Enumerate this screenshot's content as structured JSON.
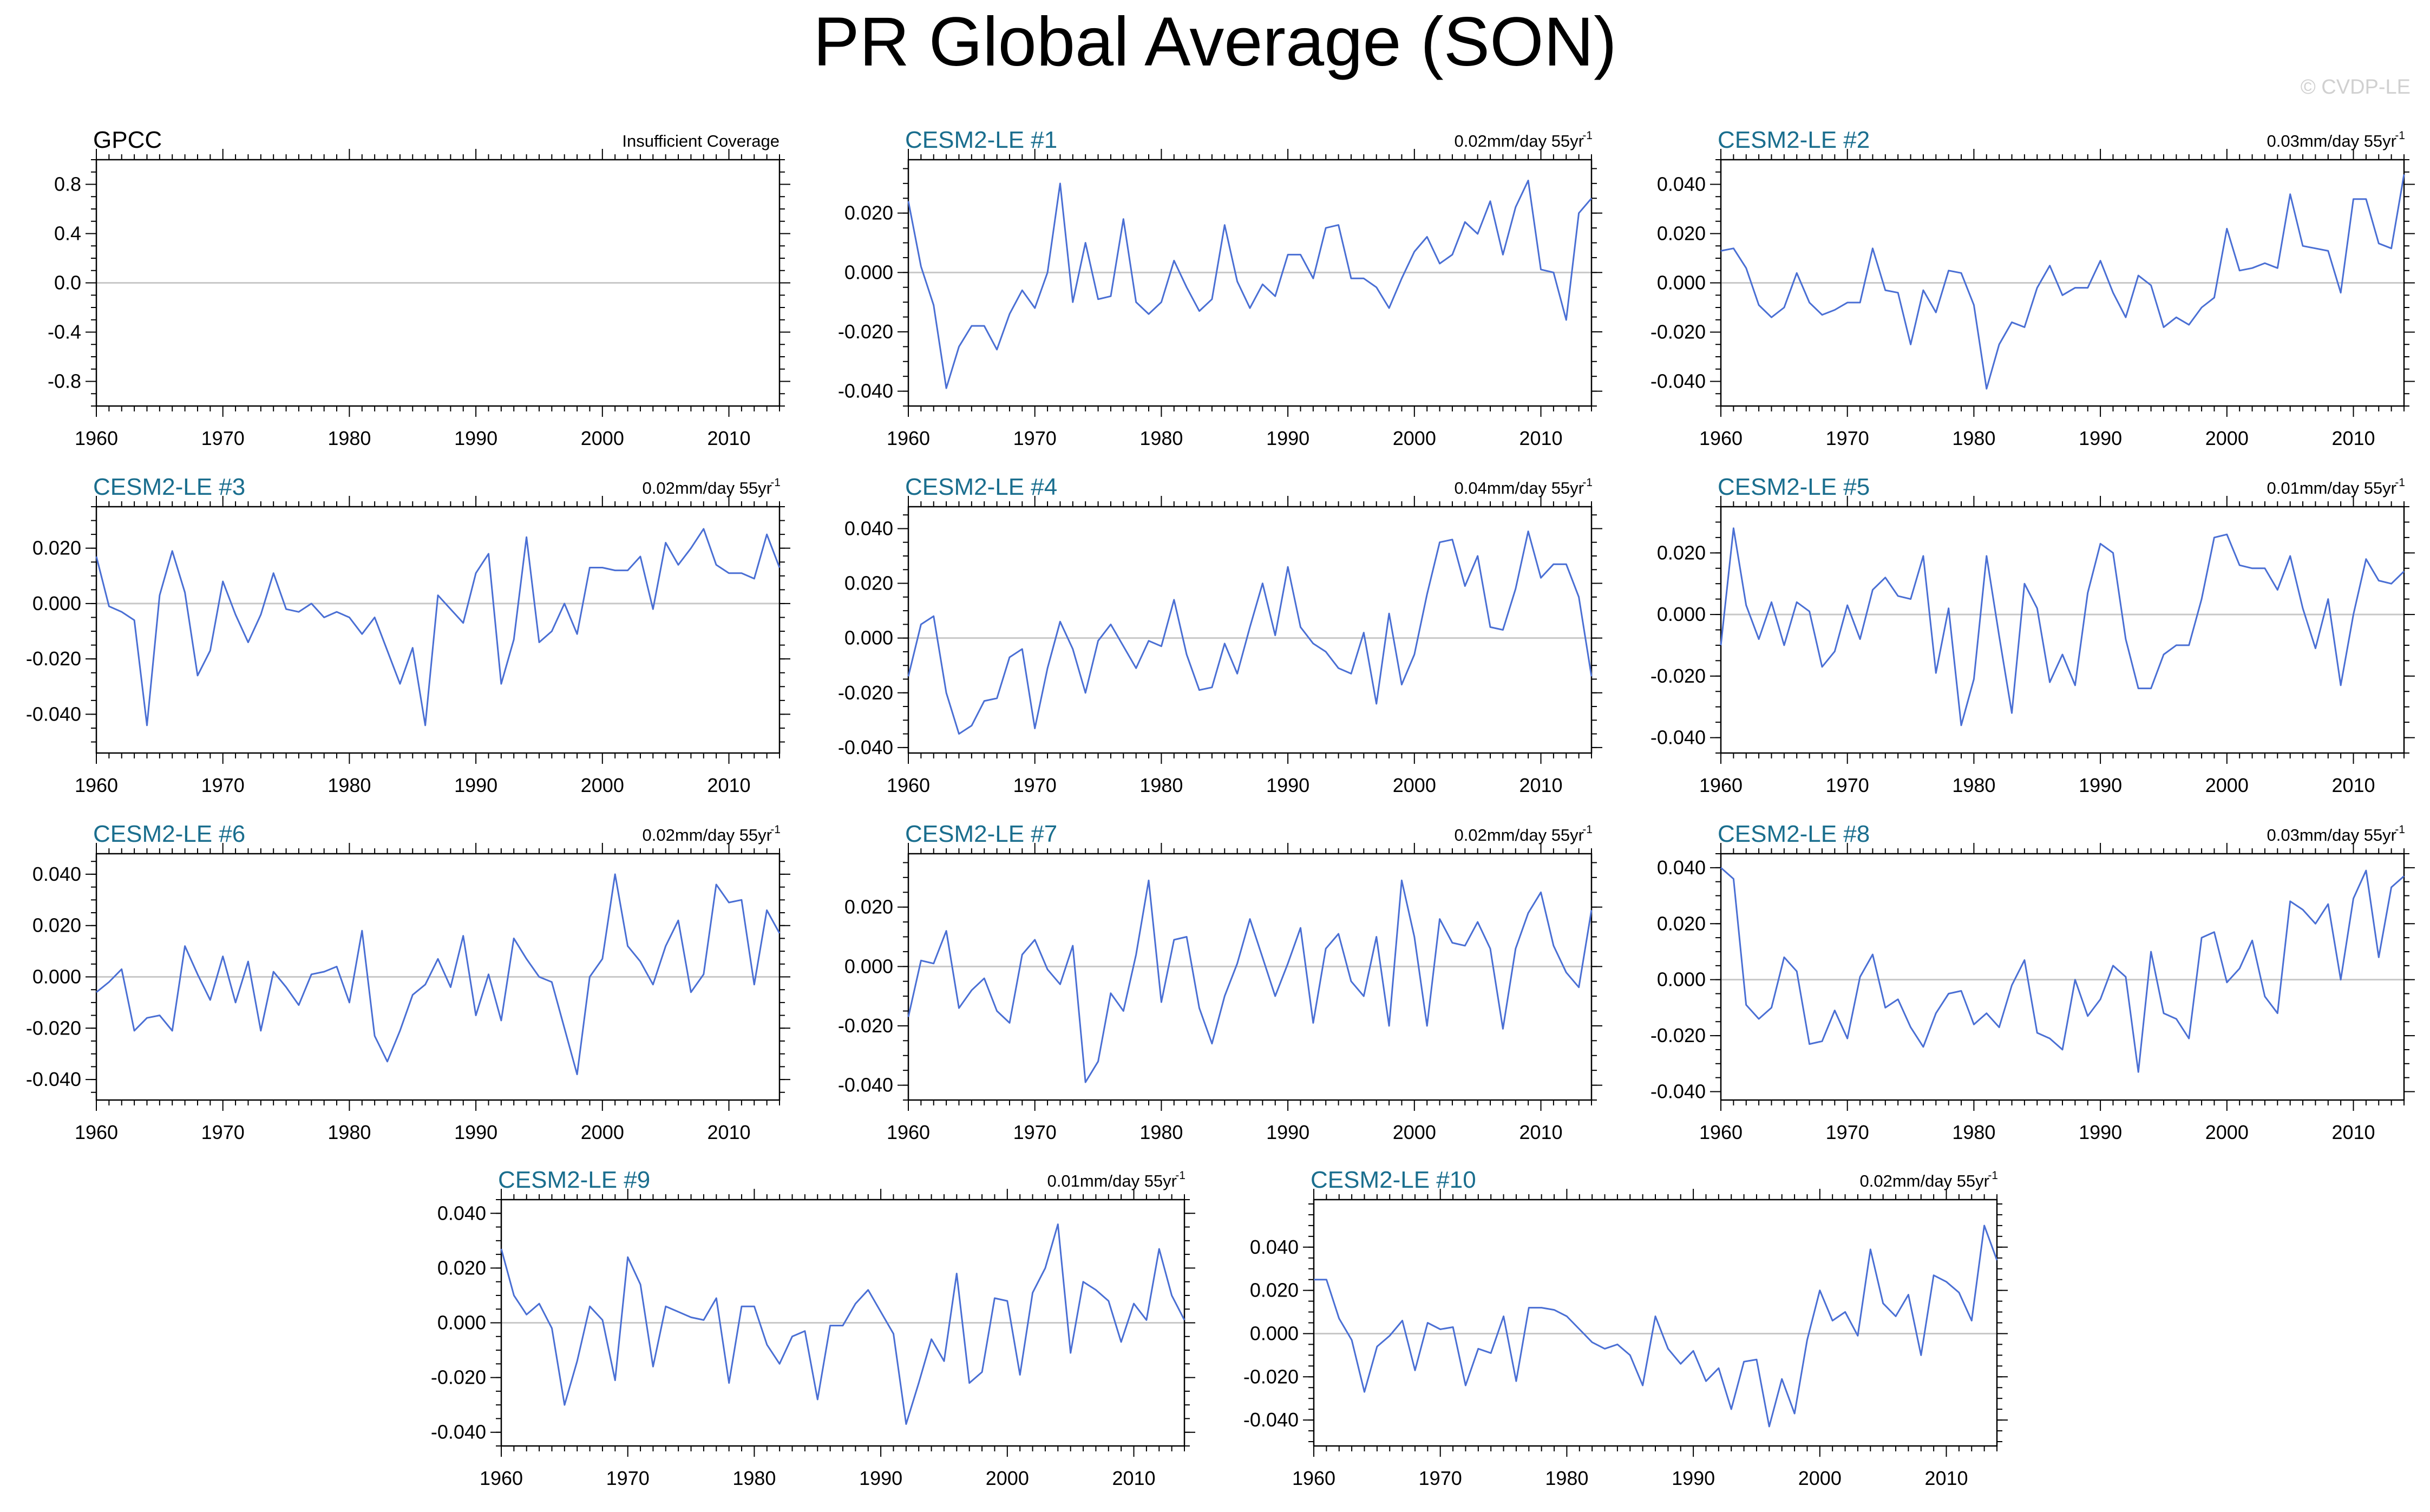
{
  "title": "PR Global Average (SON)",
  "copyright": "© CVDP-LE",
  "colors": {
    "line": "#4a6fd4",
    "zero": "#c8c8c8",
    "title_obs": "#000000",
    "title_model": "#1a6e8e"
  },
  "years_start": 1960,
  "years_end": 2014,
  "chart_data": [
    {
      "id": "gpcc",
      "type": "line",
      "title": "GPCC",
      "note": "Insufficient Coverage",
      "trend_unit": "",
      "trend_sup": "",
      "ylim": [
        -1.0,
        1.0
      ],
      "yticks": [
        -0.8,
        -0.4,
        0.0,
        0.4,
        0.8
      ],
      "ytick_labels": [
        "-0.8",
        "-0.4",
        "0.0",
        "0.4",
        "0.8"
      ],
      "xticks": [
        1960,
        1970,
        1980,
        1990,
        2000,
        2010
      ],
      "values": []
    },
    {
      "id": "le1",
      "type": "line",
      "title": "CESM2-LE #1",
      "note": "0.02mm/day 55yr",
      "trend_sup": "-1",
      "ylim": [
        -0.045,
        0.038
      ],
      "yticks": [
        -0.04,
        -0.02,
        0.0,
        0.02
      ],
      "ytick_labels": [
        "-0.040",
        "-0.020",
        "0.000",
        "0.020"
      ],
      "xticks": [
        1960,
        1970,
        1980,
        1990,
        2000,
        2010
      ],
      "values": [
        0.024,
        0.002,
        -0.011,
        -0.039,
        -0.025,
        -0.018,
        -0.018,
        -0.026,
        -0.014,
        -0.006,
        -0.012,
        0.0,
        0.03,
        -0.01,
        0.01,
        -0.009,
        -0.008,
        0.018,
        -0.01,
        -0.014,
        -0.01,
        0.004,
        -0.005,
        -0.013,
        -0.009,
        0.016,
        -0.003,
        -0.012,
        -0.004,
        -0.008,
        0.006,
        0.006,
        -0.002,
        0.015,
        0.016,
        -0.002,
        -0.002,
        -0.005,
        -0.012,
        -0.002,
        0.007,
        0.012,
        0.003,
        0.006,
        0.017,
        0.013,
        0.024,
        0.006,
        0.022,
        0.031,
        0.001,
        0.0,
        -0.016,
        0.02,
        0.025
      ]
    },
    {
      "id": "le2",
      "type": "line",
      "title": "CESM2-LE #2",
      "note": "0.03mm/day 55yr",
      "trend_sup": "-1",
      "ylim": [
        -0.05,
        0.05
      ],
      "yticks": [
        -0.04,
        -0.02,
        0.0,
        0.02,
        0.04
      ],
      "ytick_labels": [
        "-0.040",
        "-0.020",
        "0.000",
        "0.020",
        "0.040"
      ],
      "xticks": [
        1960,
        1970,
        1980,
        1990,
        2000,
        2010
      ],
      "values": [
        0.013,
        0.014,
        0.006,
        -0.009,
        -0.014,
        -0.01,
        0.004,
        -0.008,
        -0.013,
        -0.011,
        -0.008,
        -0.008,
        0.014,
        -0.003,
        -0.004,
        -0.025,
        -0.003,
        -0.012,
        0.005,
        0.004,
        -0.009,
        -0.043,
        -0.025,
        -0.016,
        -0.018,
        -0.002,
        0.007,
        -0.005,
        -0.002,
        -0.002,
        0.009,
        -0.004,
        -0.014,
        0.003,
        -0.001,
        -0.018,
        -0.014,
        -0.017,
        -0.01,
        -0.006,
        0.022,
        0.005,
        0.006,
        0.008,
        0.006,
        0.036,
        0.015,
        0.014,
        0.013,
        -0.004,
        0.034,
        0.034,
        0.016,
        0.014,
        0.044
      ]
    },
    {
      "id": "le3",
      "type": "line",
      "title": "CESM2-LE #3",
      "note": "0.02mm/day 55yr",
      "trend_sup": "-1",
      "ylim": [
        -0.054,
        0.035
      ],
      "yticks": [
        -0.04,
        -0.02,
        0.0,
        0.02
      ],
      "ytick_labels": [
        "-0.040",
        "-0.020",
        "0.000",
        "0.020"
      ],
      "xticks": [
        1960,
        1970,
        1980,
        1990,
        2000,
        2010
      ],
      "values": [
        0.017,
        -0.001,
        -0.003,
        -0.006,
        -0.044,
        0.003,
        0.019,
        0.004,
        -0.026,
        -0.017,
        0.008,
        -0.004,
        -0.014,
        -0.004,
        0.011,
        -0.002,
        -0.003,
        0.0,
        -0.005,
        -0.003,
        -0.005,
        -0.011,
        -0.005,
        -0.017,
        -0.029,
        -0.016,
        -0.044,
        0.003,
        -0.002,
        -0.007,
        0.011,
        0.018,
        -0.029,
        -0.013,
        0.024,
        -0.014,
        -0.01,
        0.0,
        -0.011,
        0.013,
        0.013,
        0.012,
        0.012,
        0.017,
        -0.002,
        0.022,
        0.014,
        0.02,
        0.027,
        0.014,
        0.011,
        0.011,
        0.009,
        0.025,
        0.013
      ]
    },
    {
      "id": "le4",
      "type": "line",
      "title": "CESM2-LE #4",
      "note": "0.04mm/day 55yr",
      "trend_sup": "-1",
      "ylim": [
        -0.042,
        0.048
      ],
      "yticks": [
        -0.04,
        -0.02,
        0.0,
        0.02,
        0.04
      ],
      "ytick_labels": [
        "-0.040",
        "-0.020",
        "0.000",
        "0.020",
        "0.040"
      ],
      "xticks": [
        1960,
        1970,
        1980,
        1990,
        2000,
        2010
      ],
      "values": [
        -0.014,
        0.005,
        0.008,
        -0.02,
        -0.035,
        -0.032,
        -0.023,
        -0.022,
        -0.007,
        -0.004,
        -0.033,
        -0.011,
        0.006,
        -0.004,
        -0.02,
        -0.001,
        0.005,
        -0.003,
        -0.011,
        -0.001,
        -0.003,
        0.014,
        -0.006,
        -0.019,
        -0.018,
        -0.002,
        -0.013,
        0.004,
        0.02,
        0.001,
        0.026,
        0.004,
        -0.002,
        -0.005,
        -0.011,
        -0.013,
        0.002,
        -0.024,
        0.009,
        -0.017,
        -0.006,
        0.016,
        0.035,
        0.036,
        0.019,
        0.03,
        0.004,
        0.003,
        0.018,
        0.039,
        0.022,
        0.027,
        0.027,
        0.015,
        -0.014
      ]
    },
    {
      "id": "le5",
      "type": "line",
      "title": "CESM2-LE #5",
      "note": "0.01mm/day 55yr",
      "trend_sup": "-1",
      "ylim": [
        -0.045,
        0.035
      ],
      "yticks": [
        -0.04,
        -0.02,
        0.0,
        0.02
      ],
      "ytick_labels": [
        "-0.040",
        "-0.020",
        "0.000",
        "0.020"
      ],
      "xticks": [
        1960,
        1970,
        1980,
        1990,
        2000,
        2010
      ],
      "values": [
        -0.01,
        0.028,
        0.003,
        -0.008,
        0.004,
        -0.01,
        0.004,
        0.001,
        -0.017,
        -0.012,
        0.003,
        -0.008,
        0.008,
        0.012,
        0.006,
        0.005,
        0.019,
        -0.019,
        0.002,
        -0.036,
        -0.021,
        0.019,
        -0.007,
        -0.032,
        0.01,
        0.002,
        -0.022,
        -0.013,
        -0.023,
        0.007,
        0.023,
        0.02,
        -0.008,
        -0.024,
        -0.024,
        -0.013,
        -0.01,
        -0.01,
        0.005,
        0.025,
        0.026,
        0.016,
        0.015,
        0.015,
        0.008,
        0.019,
        0.002,
        -0.011,
        0.005,
        -0.023,
        0.0,
        0.018,
        0.011,
        0.01,
        0.014
      ]
    },
    {
      "id": "le6",
      "type": "line",
      "title": "CESM2-LE #6",
      "note": "0.02mm/day 55yr",
      "trend_sup": "-1",
      "ylim": [
        -0.048,
        0.048
      ],
      "yticks": [
        -0.04,
        -0.02,
        0.0,
        0.02,
        0.04
      ],
      "ytick_labels": [
        "-0.040",
        "-0.020",
        "0.000",
        "0.020",
        "0.040"
      ],
      "xticks": [
        1960,
        1970,
        1980,
        1990,
        2000,
        2010
      ],
      "values": [
        -0.006,
        -0.002,
        0.003,
        -0.021,
        -0.016,
        -0.015,
        -0.021,
        0.012,
        0.001,
        -0.009,
        0.008,
        -0.01,
        0.006,
        -0.021,
        0.002,
        -0.004,
        -0.011,
        0.001,
        0.002,
        0.004,
        -0.01,
        0.018,
        -0.023,
        -0.033,
        -0.021,
        -0.007,
        -0.003,
        0.007,
        -0.004,
        0.016,
        -0.015,
        0.001,
        -0.017,
        0.015,
        0.007,
        0.0,
        -0.002,
        -0.02,
        -0.038,
        0.0,
        0.007,
        0.04,
        0.012,
        0.006,
        -0.003,
        0.012,
        0.022,
        -0.006,
        0.001,
        0.036,
        0.029,
        0.03,
        -0.003,
        0.026,
        0.017
      ]
    },
    {
      "id": "le7",
      "type": "line",
      "title": "CESM2-LE #7",
      "note": "0.02mm/day 55yr",
      "trend_sup": "-1",
      "ylim": [
        -0.045,
        0.038
      ],
      "yticks": [
        -0.04,
        -0.02,
        0.0,
        0.02
      ],
      "ytick_labels": [
        "-0.040",
        "-0.020",
        "0.000",
        "0.020"
      ],
      "xticks": [
        1960,
        1970,
        1980,
        1990,
        2000,
        2010
      ],
      "values": [
        -0.017,
        0.002,
        0.001,
        0.012,
        -0.014,
        -0.008,
        -0.004,
        -0.015,
        -0.019,
        0.004,
        0.009,
        -0.001,
        -0.006,
        0.007,
        -0.039,
        -0.032,
        -0.009,
        -0.015,
        0.004,
        0.029,
        -0.012,
        0.009,
        0.01,
        -0.014,
        -0.026,
        -0.01,
        0.001,
        0.016,
        0.003,
        -0.01,
        0.001,
        0.013,
        -0.019,
        0.006,
        0.011,
        -0.005,
        -0.01,
        0.01,
        -0.02,
        0.029,
        0.01,
        -0.02,
        0.016,
        0.008,
        0.007,
        0.015,
        0.006,
        -0.021,
        0.006,
        0.018,
        0.025,
        0.007,
        -0.002,
        -0.007,
        0.019
      ]
    },
    {
      "id": "le8",
      "type": "line",
      "title": "CESM2-LE #8",
      "note": "0.03mm/day 55yr",
      "trend_sup": "-1",
      "ylim": [
        -0.043,
        0.045
      ],
      "yticks": [
        -0.04,
        -0.02,
        0.0,
        0.02,
        0.04
      ],
      "ytick_labels": [
        "-0.040",
        "-0.020",
        "0.000",
        "0.020",
        "0.040"
      ],
      "xticks": [
        1960,
        1970,
        1980,
        1990,
        2000,
        2010
      ],
      "values": [
        0.04,
        0.036,
        -0.009,
        -0.014,
        -0.01,
        0.008,
        0.003,
        -0.023,
        -0.022,
        -0.011,
        -0.021,
        0.001,
        0.009,
        -0.01,
        -0.007,
        -0.017,
        -0.024,
        -0.012,
        -0.005,
        -0.004,
        -0.016,
        -0.012,
        -0.017,
        -0.002,
        0.007,
        -0.019,
        -0.021,
        -0.025,
        0.0,
        -0.013,
        -0.007,
        0.005,
        0.001,
        -0.033,
        0.01,
        -0.012,
        -0.014,
        -0.021,
        0.015,
        0.017,
        -0.001,
        0.004,
        0.014,
        -0.006,
        -0.012,
        0.028,
        0.025,
        0.02,
        0.027,
        0.0,
        0.029,
        0.039,
        0.008,
        0.033,
        0.037
      ]
    },
    {
      "id": "le9",
      "type": "line",
      "title": "CESM2-LE #9",
      "note": "0.01mm/day 55yr",
      "trend_sup": "-1",
      "ylim": [
        -0.045,
        0.045
      ],
      "yticks": [
        -0.04,
        -0.02,
        0.0,
        0.02,
        0.04
      ],
      "ytick_labels": [
        "-0.040",
        "-0.020",
        "0.000",
        "0.020",
        "0.040"
      ],
      "xticks": [
        1960,
        1970,
        1980,
        1990,
        2000,
        2010
      ],
      "values": [
        0.027,
        0.01,
        0.003,
        0.007,
        -0.002,
        -0.03,
        -0.014,
        0.006,
        0.001,
        -0.021,
        0.024,
        0.014,
        -0.016,
        0.006,
        0.004,
        0.002,
        0.001,
        0.009,
        -0.022,
        0.006,
        0.006,
        -0.008,
        -0.015,
        -0.005,
        -0.003,
        -0.028,
        -0.001,
        -0.001,
        0.007,
        0.012,
        0.004,
        -0.004,
        -0.037,
        -0.022,
        -0.006,
        -0.014,
        0.018,
        -0.022,
        -0.018,
        0.009,
        0.008,
        -0.019,
        0.011,
        0.02,
        0.036,
        -0.011,
        0.015,
        0.012,
        0.008,
        -0.007,
        0.007,
        0.001,
        0.027,
        0.01,
        0.001
      ]
    },
    {
      "id": "le10",
      "type": "line",
      "title": "CESM2-LE #10",
      "note": "0.02mm/day 55yr",
      "trend_sup": "-1",
      "ylim": [
        -0.052,
        0.062
      ],
      "yticks": [
        -0.04,
        -0.02,
        0.0,
        0.02,
        0.04
      ],
      "ytick_labels": [
        "-0.040",
        "-0.020",
        "0.000",
        "0.020",
        "0.040"
      ],
      "xticks": [
        1960,
        1970,
        1980,
        1990,
        2000,
        2010
      ],
      "values": [
        0.025,
        0.025,
        0.007,
        -0.003,
        -0.027,
        -0.006,
        -0.001,
        0.006,
        -0.017,
        0.005,
        0.002,
        0.003,
        -0.024,
        -0.007,
        -0.009,
        0.008,
        -0.022,
        0.012,
        0.012,
        0.011,
        0.008,
        0.002,
        -0.004,
        -0.007,
        -0.005,
        -0.01,
        -0.024,
        0.008,
        -0.007,
        -0.014,
        -0.008,
        -0.022,
        -0.016,
        -0.035,
        -0.013,
        -0.012,
        -0.043,
        -0.021,
        -0.037,
        -0.003,
        0.02,
        0.006,
        0.01,
        -0.001,
        0.039,
        0.014,
        0.008,
        0.018,
        -0.01,
        0.027,
        0.024,
        0.019,
        0.006,
        0.05,
        0.034
      ]
    }
  ]
}
